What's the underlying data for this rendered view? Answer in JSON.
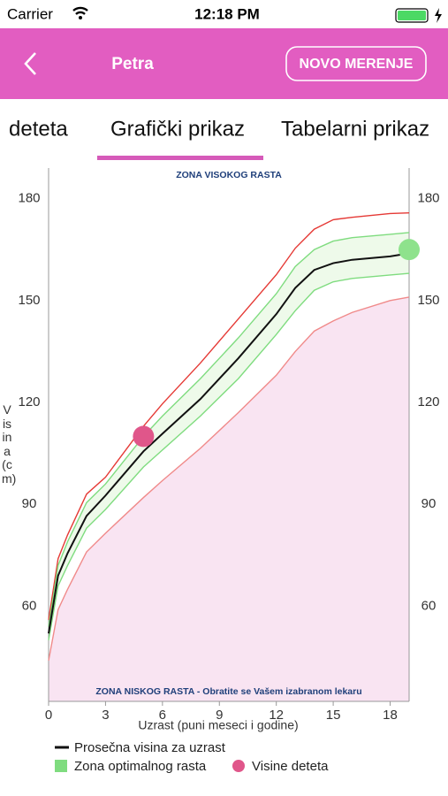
{
  "status_bar": {
    "carrier": "Carrier",
    "time": "12:18 PM"
  },
  "nav": {
    "title": "Petra",
    "button": "NOVO MERENJE"
  },
  "tabs": [
    "deteta",
    "Grafički prikaz",
    "Tabelarni prikaz"
  ],
  "chart_data": {
    "type": "line",
    "top_annotation": "ZONA VISOKOG RASTA",
    "bottom_annotation": "ZONA NISKOG RASTA - Obratite se Vašem izabranom lekaru",
    "x_label": "Uzrast (puni meseci i godine)",
    "y_label": "Visina (cm)",
    "xlim": [
      0,
      19
    ],
    "ylim": [
      32,
      189
    ],
    "xticks": [
      0,
      3,
      6,
      9,
      12,
      15,
      18
    ],
    "yticks": [
      60,
      90,
      120,
      150,
      180
    ],
    "x": [
      0,
      0.5,
      1,
      2,
      3,
      5,
      6,
      8,
      10,
      12,
      13,
      14,
      15,
      16,
      18,
      19
    ],
    "series": [
      {
        "name": "Prosečna visina za uzrast",
        "color": "#111111",
        "values": [
          52,
          69,
          75.6,
          86.6,
          92.6,
          105.6,
          110.8,
          121,
          133,
          146,
          153.7,
          159,
          161,
          162,
          163,
          163.9
        ]
      }
    ],
    "optimal_zone": {
      "name": "Zona optimalnog rasta",
      "color": "#7fdc7f",
      "fill": "#eefaea",
      "upper": [
        54,
        72,
        79,
        90.5,
        96,
        110,
        116,
        127,
        139,
        152,
        160,
        165,
        167.5,
        168.5,
        169.5,
        170
      ],
      "lower": [
        50,
        66,
        72,
        83,
        88.5,
        101,
        106,
        116,
        127,
        140,
        147,
        153,
        155.5,
        156.5,
        157.5,
        158
      ]
    },
    "bounds": {
      "upper_color": "#e53935",
      "lower_color": "#f08a8a",
      "low_fill": "#f9e4f2",
      "upper": [
        56,
        74,
        81,
        93,
        98,
        113,
        119.6,
        131.6,
        144.6,
        157.6,
        165.4,
        171,
        173.8,
        174.5,
        175.6,
        175.8
      ],
      "lower": [
        44,
        59,
        65,
        76,
        81.5,
        92,
        97,
        106.5,
        117,
        128,
        135,
        141,
        144,
        146.5,
        150,
        151
      ]
    },
    "points": {
      "name": "Visine deteta",
      "x": [
        5,
        19
      ],
      "values": [
        110,
        165
      ],
      "colors": [
        "#e0568a",
        "#8ee28c"
      ]
    }
  }
}
